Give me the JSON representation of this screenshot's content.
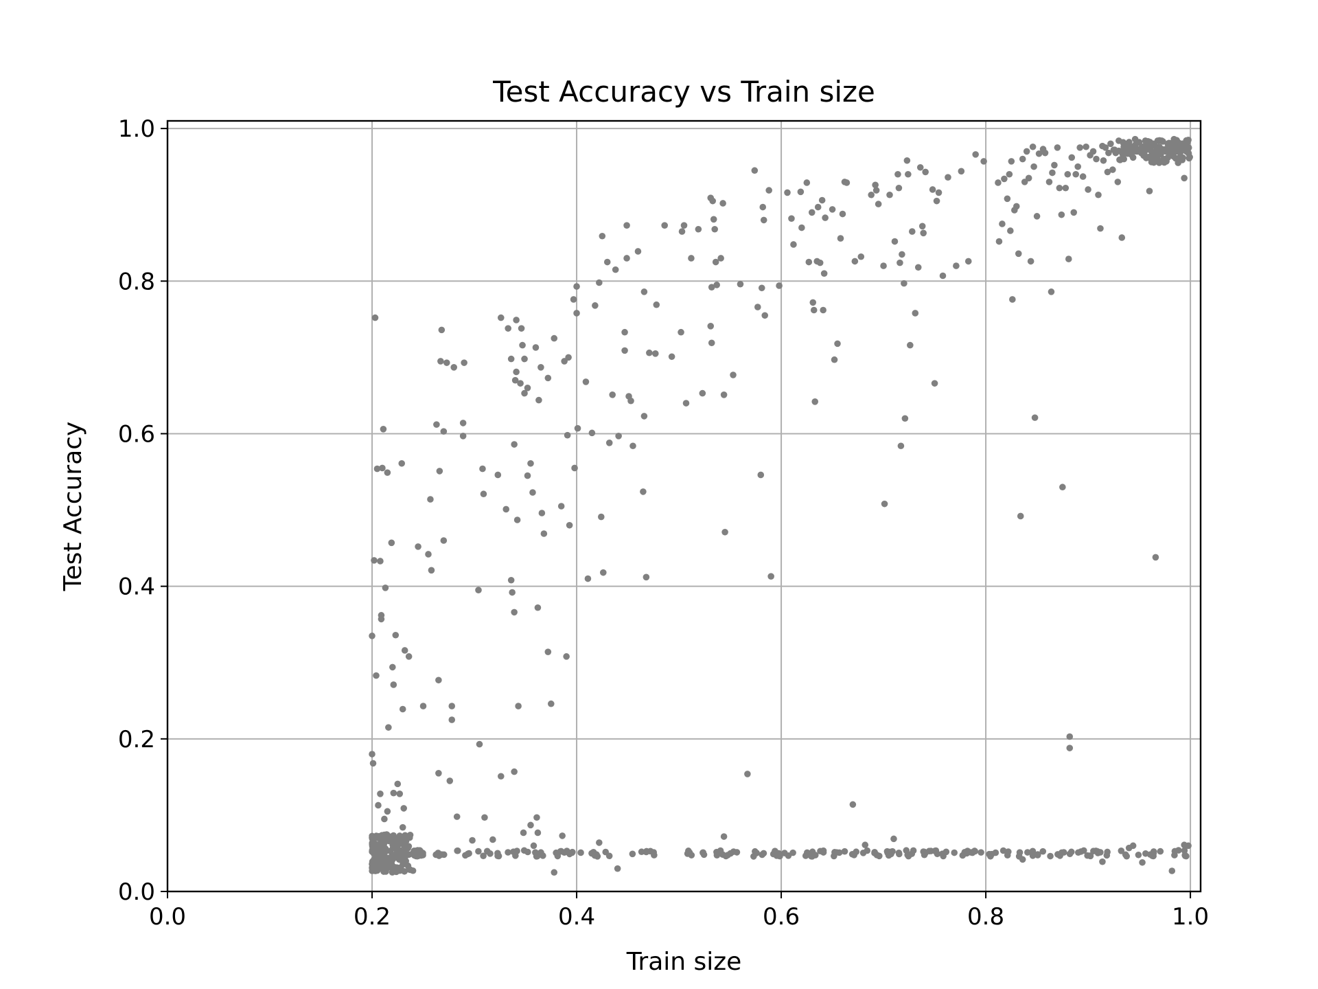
{
  "chart_data": {
    "type": "scatter",
    "title": "Test Accuracy vs Train size",
    "xlabel": "Train size",
    "ylabel": "Test Accuracy",
    "xlim": [
      0.0,
      1.01
    ],
    "ylim": [
      0.0,
      1.01
    ],
    "xticks": [
      "0.0",
      "0.2",
      "0.4",
      "0.6",
      "0.8",
      "1.0"
    ],
    "yticks": [
      "0.0",
      "0.2",
      "0.4",
      "0.6",
      "0.8",
      "1.0"
    ],
    "grid": true,
    "marker_color": "#808080",
    "points": [
      [
        0.203,
        0.752
      ],
      [
        0.202,
        0.434
      ],
      [
        0.2,
        0.335
      ],
      [
        0.2,
        0.18
      ],
      [
        0.201,
        0.168
      ],
      [
        0.204,
        0.283
      ],
      [
        0.205,
        0.554
      ],
      [
        0.208,
        0.433
      ],
      [
        0.21,
        0.555
      ],
      [
        0.211,
        0.606
      ],
      [
        0.209,
        0.362
      ],
      [
        0.209,
        0.357
      ],
      [
        0.213,
        0.398
      ],
      [
        0.215,
        0.549
      ],
      [
        0.216,
        0.215
      ],
      [
        0.219,
        0.457
      ],
      [
        0.22,
        0.294
      ],
      [
        0.221,
        0.271
      ],
      [
        0.223,
        0.336
      ],
      [
        0.229,
        0.561
      ],
      [
        0.23,
        0.239
      ],
      [
        0.232,
        0.316
      ],
      [
        0.236,
        0.308
      ],
      [
        0.245,
        0.452
      ],
      [
        0.25,
        0.243
      ],
      [
        0.255,
        0.442
      ],
      [
        0.257,
        0.514
      ],
      [
        0.258,
        0.421
      ],
      [
        0.263,
        0.612
      ],
      [
        0.265,
        0.277
      ],
      [
        0.266,
        0.551
      ],
      [
        0.268,
        0.736
      ],
      [
        0.267,
        0.695
      ],
      [
        0.27,
        0.603
      ],
      [
        0.27,
        0.46
      ],
      [
        0.273,
        0.693
      ],
      [
        0.276,
        0.145
      ],
      [
        0.278,
        0.243
      ],
      [
        0.278,
        0.225
      ],
      [
        0.28,
        0.687
      ],
      [
        0.289,
        0.614
      ],
      [
        0.29,
        0.693
      ],
      [
        0.289,
        0.597
      ],
      [
        0.304,
        0.395
      ],
      [
        0.305,
        0.193
      ],
      [
        0.308,
        0.554
      ],
      [
        0.309,
        0.521
      ],
      [
        0.323,
        0.546
      ],
      [
        0.326,
        0.752
      ],
      [
        0.331,
        0.501
      ],
      [
        0.333,
        0.738
      ],
      [
        0.336,
        0.698
      ],
      [
        0.336,
        0.408
      ],
      [
        0.337,
        0.392
      ],
      [
        0.339,
        0.366
      ],
      [
        0.339,
        0.586
      ],
      [
        0.34,
        0.67
      ],
      [
        0.341,
        0.681
      ],
      [
        0.341,
        0.749
      ],
      [
        0.342,
        0.487
      ],
      [
        0.343,
        0.243
      ],
      [
        0.345,
        0.666
      ],
      [
        0.346,
        0.738
      ],
      [
        0.347,
        0.716
      ],
      [
        0.349,
        0.698
      ],
      [
        0.349,
        0.653
      ],
      [
        0.352,
        0.66
      ],
      [
        0.352,
        0.545
      ],
      [
        0.355,
        0.561
      ],
      [
        0.357,
        0.523
      ],
      [
        0.36,
        0.713
      ],
      [
        0.362,
        0.372
      ],
      [
        0.363,
        0.644
      ],
      [
        0.365,
        0.687
      ],
      [
        0.366,
        0.496
      ],
      [
        0.368,
        0.469
      ],
      [
        0.372,
        0.314
      ],
      [
        0.372,
        0.673
      ],
      [
        0.375,
        0.246
      ],
      [
        0.378,
        0.725
      ],
      [
        0.385,
        0.505
      ],
      [
        0.388,
        0.695
      ],
      [
        0.39,
        0.308
      ],
      [
        0.391,
        0.598
      ],
      [
        0.392,
        0.7
      ],
      [
        0.393,
        0.48
      ],
      [
        0.397,
        0.776
      ],
      [
        0.398,
        0.555
      ],
      [
        0.4,
        0.758
      ],
      [
        0.4,
        0.793
      ],
      [
        0.401,
        0.607
      ],
      [
        0.409,
        0.668
      ],
      [
        0.411,
        0.41
      ],
      [
        0.415,
        0.601
      ],
      [
        0.418,
        0.768
      ],
      [
        0.422,
        0.798
      ],
      [
        0.424,
        0.491
      ],
      [
        0.425,
        0.859
      ],
      [
        0.426,
        0.418
      ],
      [
        0.43,
        0.825
      ],
      [
        0.432,
        0.588
      ],
      [
        0.435,
        0.651
      ],
      [
        0.438,
        0.815
      ],
      [
        0.441,
        0.597
      ],
      [
        0.447,
        0.733
      ],
      [
        0.447,
        0.709
      ],
      [
        0.449,
        0.83
      ],
      [
        0.449,
        0.873
      ],
      [
        0.451,
        0.649
      ],
      [
        0.453,
        0.643
      ],
      [
        0.455,
        0.584
      ],
      [
        0.46,
        0.839
      ],
      [
        0.465,
        0.524
      ],
      [
        0.466,
        0.786
      ],
      [
        0.466,
        0.623
      ],
      [
        0.468,
        0.412
      ],
      [
        0.471,
        0.706
      ],
      [
        0.477,
        0.705
      ],
      [
        0.478,
        0.769
      ],
      [
        0.486,
        0.873
      ],
      [
        0.493,
        0.701
      ],
      [
        0.502,
        0.733
      ],
      [
        0.503,
        0.865
      ],
      [
        0.505,
        0.873
      ],
      [
        0.507,
        0.64
      ],
      [
        0.512,
        0.83
      ],
      [
        0.519,
        0.868
      ],
      [
        0.523,
        0.653
      ],
      [
        0.531,
        0.741
      ],
      [
        0.532,
        0.792
      ],
      [
        0.532,
        0.719
      ],
      [
        0.531,
        0.909
      ],
      [
        0.533,
        0.905
      ],
      [
        0.534,
        0.881
      ],
      [
        0.535,
        0.868
      ],
      [
        0.536,
        0.825
      ],
      [
        0.537,
        0.795
      ],
      [
        0.541,
        0.83
      ],
      [
        0.543,
        0.902
      ],
      [
        0.544,
        0.651
      ],
      [
        0.545,
        0.471
      ],
      [
        0.553,
        0.677
      ],
      [
        0.56,
        0.796
      ],
      [
        0.567,
        0.154
      ],
      [
        0.574,
        0.945
      ],
      [
        0.577,
        0.766
      ],
      [
        0.58,
        0.546
      ],
      [
        0.581,
        0.791
      ],
      [
        0.582,
        0.897
      ],
      [
        0.583,
        0.88
      ],
      [
        0.584,
        0.755
      ],
      [
        0.588,
        0.919
      ],
      [
        0.59,
        0.413
      ],
      [
        0.598,
        0.794
      ],
      [
        0.606,
        0.916
      ],
      [
        0.61,
        0.882
      ],
      [
        0.612,
        0.848
      ],
      [
        0.619,
        0.917
      ],
      [
        0.62,
        0.87
      ],
      [
        0.625,
        0.929
      ],
      [
        0.627,
        0.825
      ],
      [
        0.63,
        0.89
      ],
      [
        0.631,
        0.772
      ],
      [
        0.632,
        0.762
      ],
      [
        0.633,
        0.642
      ],
      [
        0.635,
        0.826
      ],
      [
        0.636,
        0.897
      ],
      [
        0.638,
        0.824
      ],
      [
        0.64,
        0.906
      ],
      [
        0.641,
        0.762
      ],
      [
        0.642,
        0.81
      ],
      [
        0.643,
        0.883
      ],
      [
        0.65,
        0.894
      ],
      [
        0.652,
        0.697
      ],
      [
        0.655,
        0.718
      ],
      [
        0.658,
        0.856
      ],
      [
        0.66,
        0.888
      ],
      [
        0.662,
        0.93
      ],
      [
        0.664,
        0.929
      ],
      [
        0.67,
        0.114
      ],
      [
        0.672,
        0.826
      ],
      [
        0.678,
        0.832
      ],
      [
        0.688,
        0.913
      ],
      [
        0.692,
        0.926
      ],
      [
        0.693,
        0.919
      ],
      [
        0.695,
        0.901
      ],
      [
        0.7,
        0.82
      ],
      [
        0.701,
        0.508
      ],
      [
        0.706,
        0.913
      ],
      [
        0.711,
        0.852
      ],
      [
        0.714,
        0.94
      ],
      [
        0.715,
        0.922
      ],
      [
        0.716,
        0.824
      ],
      [
        0.717,
        0.584
      ],
      [
        0.718,
        0.835
      ],
      [
        0.72,
        0.797
      ],
      [
        0.721,
        0.62
      ],
      [
        0.723,
        0.958
      ],
      [
        0.724,
        0.94
      ],
      [
        0.726,
        0.716
      ],
      [
        0.728,
        0.865
      ],
      [
        0.731,
        0.758
      ],
      [
        0.734,
        0.818
      ],
      [
        0.736,
        0.949
      ],
      [
        0.738,
        0.872
      ],
      [
        0.739,
        0.863
      ],
      [
        0.741,
        0.943
      ],
      [
        0.748,
        0.92
      ],
      [
        0.75,
        0.666
      ],
      [
        0.752,
        0.905
      ],
      [
        0.754,
        0.916
      ],
      [
        0.758,
        0.807
      ],
      [
        0.763,
        0.936
      ],
      [
        0.771,
        0.82
      ],
      [
        0.776,
        0.944
      ],
      [
        0.783,
        0.826
      ],
      [
        0.79,
        0.966
      ],
      [
        0.798,
        0.957
      ],
      [
        0.812,
        0.929
      ],
      [
        0.813,
        0.852
      ],
      [
        0.816,
        0.875
      ],
      [
        0.818,
        0.934
      ],
      [
        0.821,
        0.908
      ],
      [
        0.823,
        0.94
      ],
      [
        0.824,
        0.866
      ],
      [
        0.825,
        0.957
      ],
      [
        0.826,
        0.776
      ],
      [
        0.828,
        0.893
      ],
      [
        0.83,
        0.898
      ],
      [
        0.832,
        0.836
      ],
      [
        0.834,
        0.492
      ],
      [
        0.836,
        0.96
      ],
      [
        0.838,
        0.93
      ],
      [
        0.84,
        0.97
      ],
      [
        0.842,
        0.935
      ],
      [
        0.844,
        0.826
      ],
      [
        0.846,
        0.976
      ],
      [
        0.847,
        0.95
      ],
      [
        0.848,
        0.621
      ],
      [
        0.85,
        0.885
      ],
      [
        0.852,
        0.967
      ],
      [
        0.856,
        0.973
      ],
      [
        0.858,
        0.968
      ],
      [
        0.862,
        0.93
      ],
      [
        0.864,
        0.786
      ],
      [
        0.865,
        0.942
      ],
      [
        0.867,
        0.952
      ],
      [
        0.87,
        0.975
      ],
      [
        0.872,
        0.922
      ],
      [
        0.874,
        0.887
      ],
      [
        0.875,
        0.53
      ],
      [
        0.878,
        0.922
      ],
      [
        0.88,
        0.94
      ],
      [
        0.881,
        0.829
      ],
      [
        0.882,
        0.203
      ],
      [
        0.882,
        0.188
      ],
      [
        0.884,
        0.962
      ],
      [
        0.886,
        0.89
      ],
      [
        0.888,
        0.94
      ],
      [
        0.89,
        0.95
      ],
      [
        0.892,
        0.975
      ],
      [
        0.895,
        0.937
      ],
      [
        0.898,
        0.976
      ],
      [
        0.9,
        0.92
      ],
      [
        0.902,
        0.965
      ],
      [
        0.905,
        0.97
      ],
      [
        0.908,
        0.96
      ],
      [
        0.91,
        0.913
      ],
      [
        0.912,
        0.869
      ],
      [
        0.914,
        0.977
      ],
      [
        0.915,
        0.958
      ],
      [
        0.917,
        0.975
      ],
      [
        0.919,
        0.943
      ],
      [
        0.92,
        0.968
      ],
      [
        0.922,
        0.98
      ],
      [
        0.924,
        0.946
      ],
      [
        0.925,
        0.972
      ],
      [
        0.927,
        0.968
      ],
      [
        0.929,
        0.93
      ],
      [
        0.93,
        0.984
      ],
      [
        0.932,
        0.97
      ],
      [
        0.933,
        0.857
      ],
      [
        0.935,
        0.96
      ],
      [
        0.937,
        0.975
      ],
      [
        0.939,
        0.978
      ],
      [
        0.94,
        0.98
      ],
      [
        0.942,
        0.966
      ],
      [
        0.944,
        0.972
      ],
      [
        0.946,
        0.986
      ],
      [
        0.948,
        0.97
      ],
      [
        0.95,
        0.982
      ],
      [
        0.952,
        0.968
      ],
      [
        0.954,
        0.975
      ],
      [
        0.956,
        0.984
      ],
      [
        0.958,
        0.962
      ],
      [
        0.96,
        0.918
      ],
      [
        0.962,
        0.978
      ],
      [
        0.964,
        0.98
      ],
      [
        0.966,
        0.438
      ],
      [
        0.966,
        0.97
      ],
      [
        0.968,
        0.96
      ],
      [
        0.97,
        0.975
      ],
      [
        0.972,
        0.984
      ],
      [
        0.974,
        0.96
      ],
      [
        0.976,
        0.97
      ],
      [
        0.978,
        0.98
      ],
      [
        0.98,
        0.965
      ],
      [
        0.982,
        0.972
      ],
      [
        0.984,
        0.986
      ],
      [
        0.986,
        0.975
      ],
      [
        0.988,
        0.955
      ],
      [
        0.99,
        0.968
      ],
      [
        0.992,
        0.98
      ],
      [
        0.994,
        0.935
      ],
      [
        0.996,
        0.97
      ],
      [
        0.998,
        0.985
      ],
      [
        0.926,
        0.972
      ],
      [
        0.934,
        0.966
      ],
      [
        0.944,
        0.962
      ],
      [
        0.958,
        0.976
      ],
      [
        0.968,
        0.984
      ],
      [
        0.978,
        0.962
      ],
      [
        0.988,
        0.978
      ],
      [
        0.206,
        0.113
      ],
      [
        0.208,
        0.128
      ],
      [
        0.212,
        0.095
      ],
      [
        0.215,
        0.105
      ],
      [
        0.219,
        0.072
      ],
      [
        0.221,
        0.129
      ],
      [
        0.225,
        0.141
      ],
      [
        0.227,
        0.128
      ],
      [
        0.23,
        0.084
      ],
      [
        0.231,
        0.109
      ],
      [
        0.265,
        0.155
      ],
      [
        0.283,
        0.098
      ],
      [
        0.298,
        0.067
      ],
      [
        0.31,
        0.097
      ],
      [
        0.318,
        0.068
      ],
      [
        0.326,
        0.151
      ],
      [
        0.339,
        0.157
      ],
      [
        0.355,
        0.087
      ],
      [
        0.361,
        0.097
      ],
      [
        0.362,
        0.077
      ],
      [
        0.358,
        0.06
      ],
      [
        0.348,
        0.077
      ],
      [
        0.378,
        0.025
      ],
      [
        0.386,
        0.073
      ],
      [
        0.422,
        0.064
      ],
      [
        0.44,
        0.03
      ],
      [
        0.544,
        0.072
      ],
      [
        0.573,
        0.046
      ],
      [
        0.682,
        0.061
      ],
      [
        0.71,
        0.069
      ],
      [
        0.836,
        0.042
      ],
      [
        0.914,
        0.039
      ],
      [
        0.953,
        0.038
      ],
      [
        0.982,
        0.027
      ],
      [
        0.994,
        0.061
      ],
      [
        0.998,
        0.06
      ],
      [
        0.944,
        0.06
      ],
      [
        0.94,
        0.057
      ]
    ],
    "band_low": {
      "y": 0.05,
      "x_start": 0.2,
      "x_end": 1.0
    }
  }
}
